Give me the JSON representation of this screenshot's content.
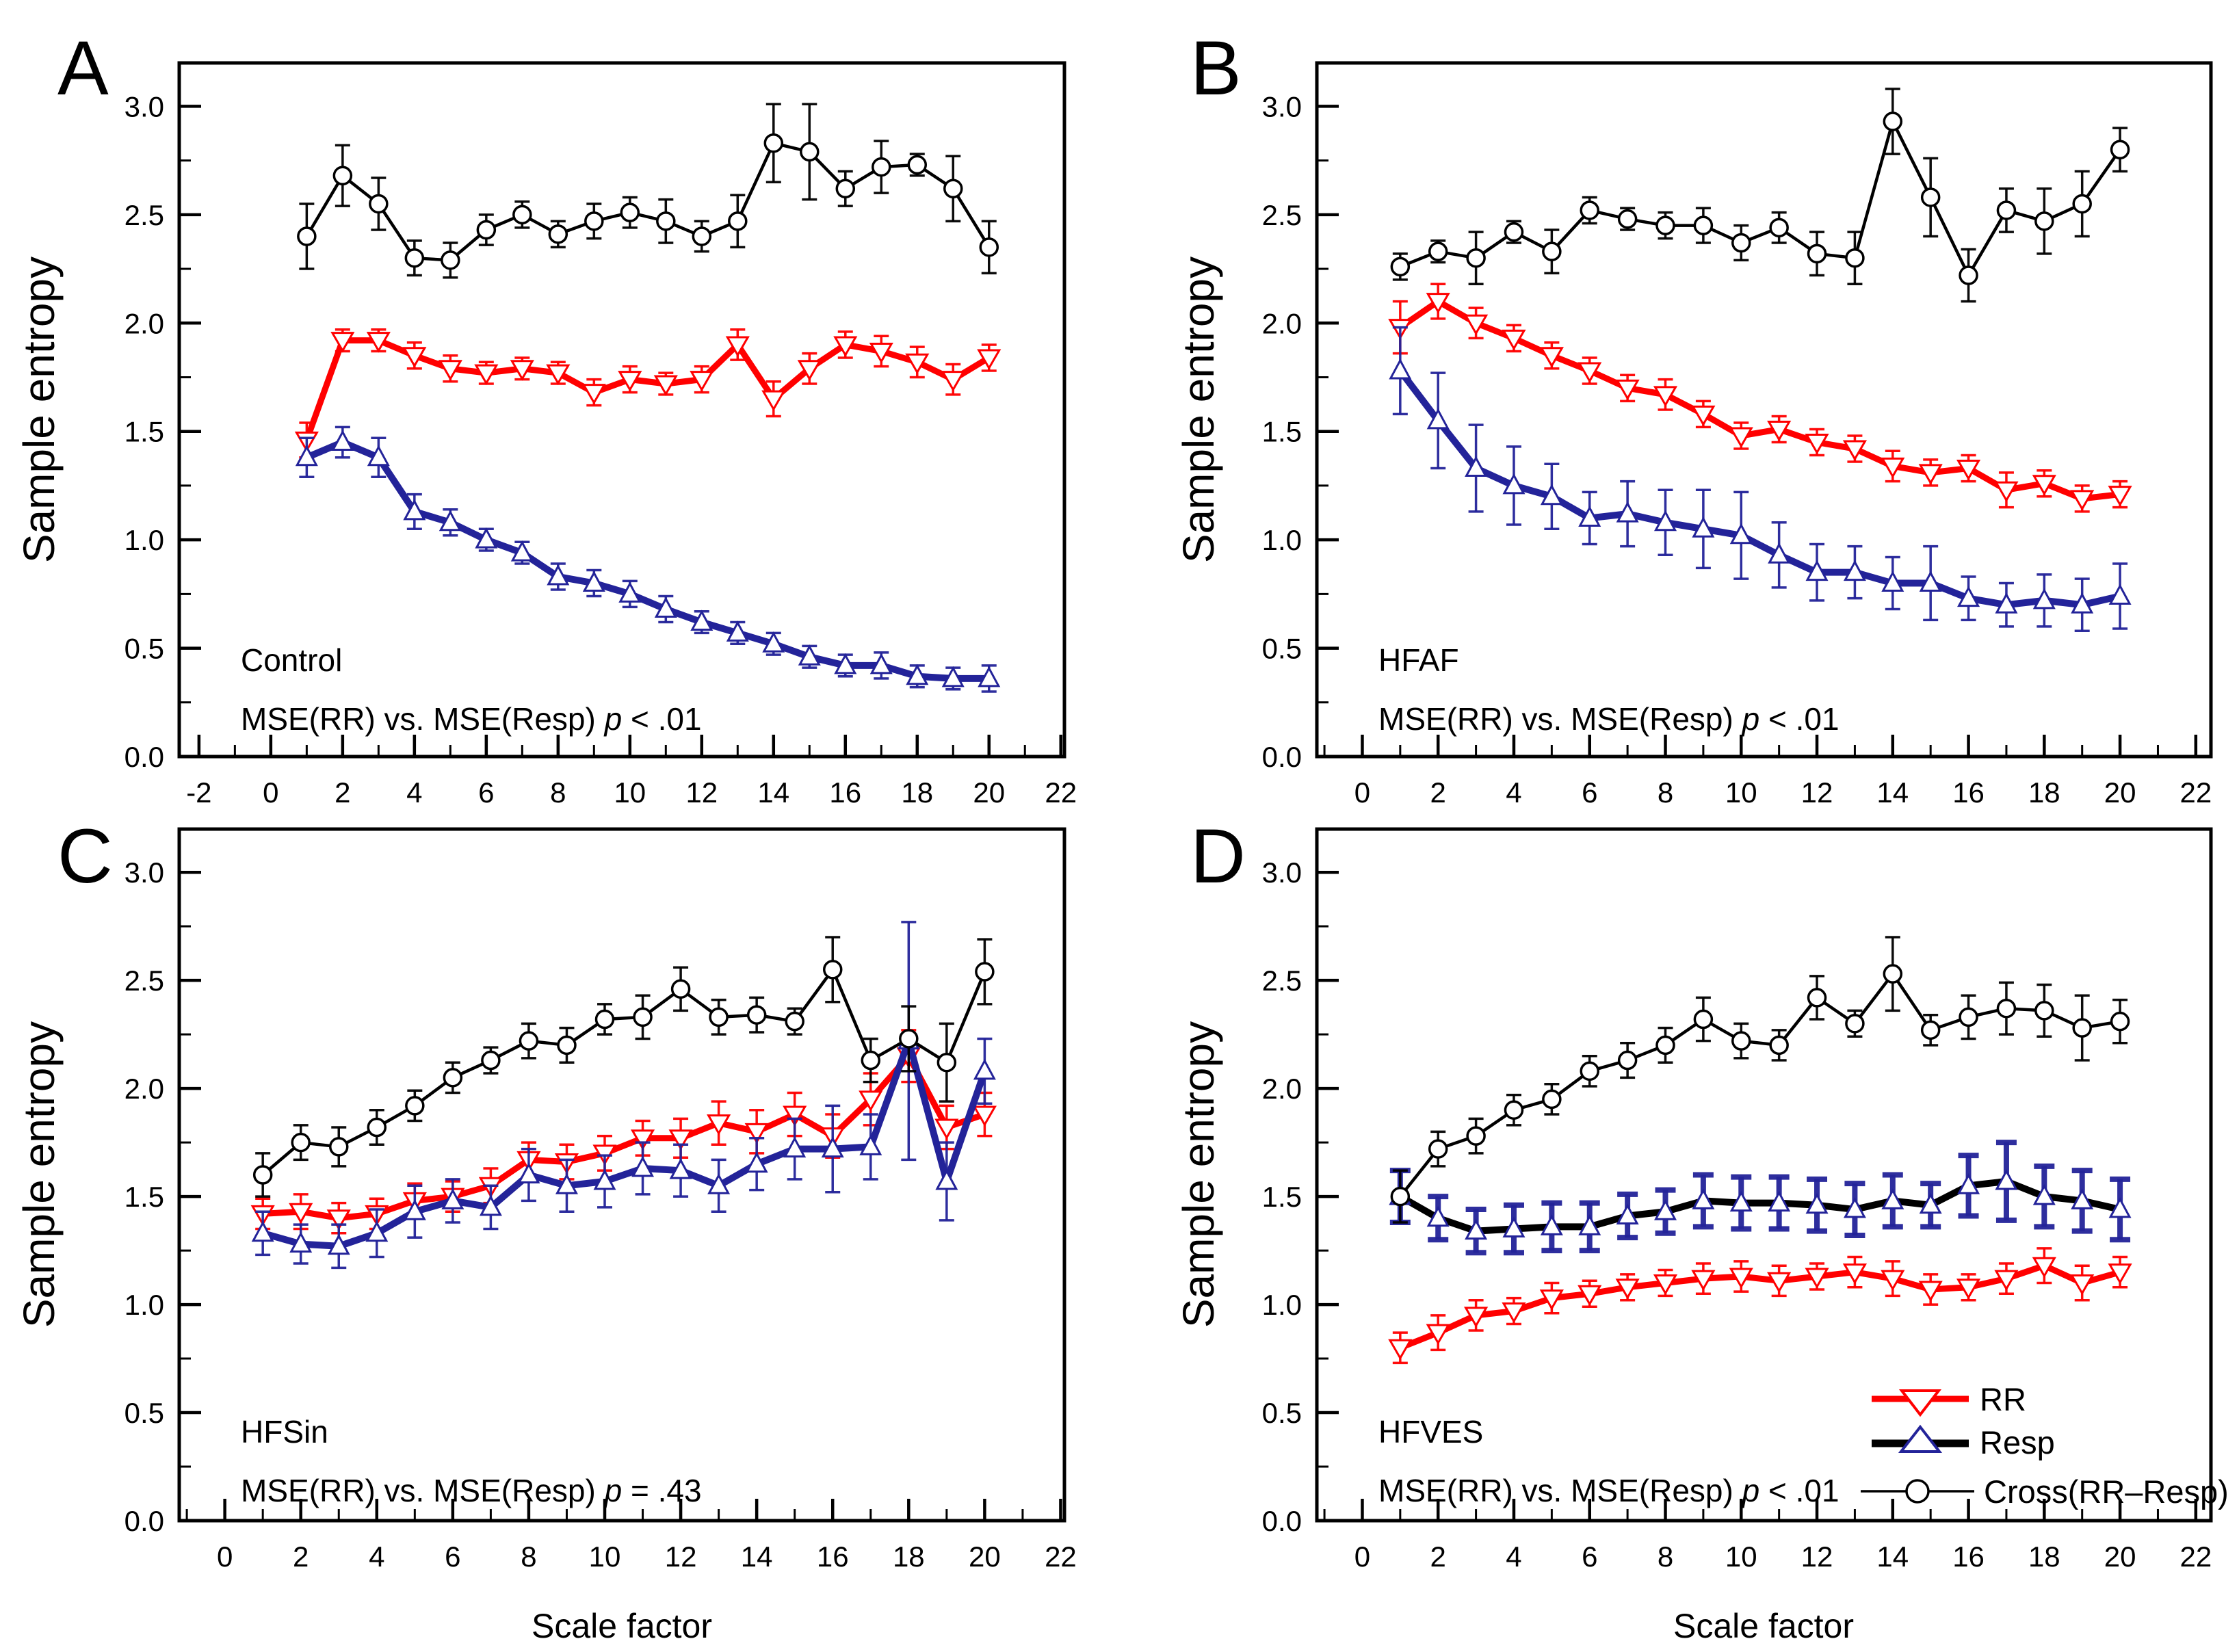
{
  "page": {
    "background": "#FFFFFF"
  },
  "colors": {
    "rr": "#FF0000",
    "resp": "#232399",
    "cross": "#000000"
  },
  "axis": {
    "y_label": "Sample entropy",
    "x_label": "Scale factor",
    "y_tick_labels": [
      "0.0",
      "0.5",
      "1.0",
      "1.5",
      "2.0",
      "2.5",
      "3.0"
    ],
    "y_tick_values": [
      0,
      0.5,
      1,
      1.5,
      2,
      2.5,
      3
    ],
    "y_minor_values": [
      0.25,
      0.75,
      1.25,
      1.75,
      2.25,
      2.75
    ],
    "ylim": [
      0,
      3.2
    ],
    "grid": "off"
  },
  "legend": {
    "location": "inside panel D, lower right",
    "items": [
      {
        "label": "RR",
        "series": "rr",
        "marker": "triangle-down"
      },
      {
        "label": "Resp",
        "series": "resp",
        "marker": "triangle-up"
      },
      {
        "label": "Cross(RR–Resp)",
        "series": "cross",
        "marker": "circle"
      }
    ]
  },
  "chart_data": [
    {
      "panel": "A",
      "type": "line",
      "title": "Control",
      "ylabel": "Sample entropy",
      "xlabel": "",
      "annotation": {
        "group": "Control",
        "sig_prefix": "MSE(RR) vs. MSE(Resp) ",
        "p": "p",
        "sig_tail": " < .01"
      },
      "x": [
        1,
        2,
        3,
        4,
        5,
        6,
        7,
        8,
        9,
        10,
        11,
        12,
        13,
        14,
        15,
        16,
        17,
        18,
        19,
        20
      ],
      "x_tick_labels": [
        "-2",
        "0",
        "2",
        "4",
        "6",
        "8",
        "10",
        "12",
        "14",
        "16",
        "18",
        "20",
        "22"
      ],
      "x_tick_values": [
        -2,
        0,
        2,
        4,
        6,
        8,
        10,
        12,
        14,
        16,
        18,
        20,
        22
      ],
      "x_minor_values": [
        -1,
        1,
        3,
        5,
        7,
        9,
        11,
        13,
        15,
        17,
        19,
        21
      ],
      "ylim": [
        0,
        3.2
      ],
      "series": [
        {
          "name": "RR",
          "color": "#FF0000",
          "line_color": "#FF0000",
          "marker": "triangle-down",
          "values": [
            1.46,
            1.92,
            1.92,
            1.85,
            1.79,
            1.77,
            1.79,
            1.77,
            1.68,
            1.74,
            1.72,
            1.74,
            1.9,
            1.65,
            1.79,
            1.9,
            1.87,
            1.82,
            1.74,
            1.84
          ],
          "errors": [
            0.08,
            0.05,
            0.05,
            0.06,
            0.06,
            0.05,
            0.05,
            0.05,
            0.06,
            0.06,
            0.05,
            0.06,
            0.07,
            0.08,
            0.07,
            0.06,
            0.07,
            0.07,
            0.07,
            0.06
          ]
        },
        {
          "name": "Resp",
          "color": "#232399",
          "line_color": "#232399",
          "marker": "triangle-up",
          "values": [
            1.38,
            1.45,
            1.38,
            1.13,
            1.08,
            1.0,
            0.94,
            0.83,
            0.8,
            0.75,
            0.68,
            0.62,
            0.57,
            0.52,
            0.46,
            0.42,
            0.42,
            0.37,
            0.36,
            0.36
          ],
          "errors": [
            0.09,
            0.07,
            0.09,
            0.08,
            0.06,
            0.05,
            0.05,
            0.06,
            0.06,
            0.06,
            0.06,
            0.05,
            0.05,
            0.05,
            0.05,
            0.05,
            0.06,
            0.05,
            0.05,
            0.06
          ]
        },
        {
          "name": "Cross(RR–Resp)",
          "color": "#000000",
          "line_color": "#000000",
          "marker": "circle",
          "values": [
            2.4,
            2.68,
            2.55,
            2.3,
            2.29,
            2.43,
            2.5,
            2.41,
            2.47,
            2.51,
            2.47,
            2.4,
            2.47,
            2.83,
            2.79,
            2.62,
            2.72,
            2.73,
            2.62,
            2.35
          ],
          "errors": [
            0.15,
            0.14,
            0.12,
            0.08,
            0.08,
            0.07,
            0.06,
            0.06,
            0.08,
            0.07,
            0.1,
            0.07,
            0.12,
            0.18,
            0.22,
            0.08,
            0.12,
            0.05,
            0.15,
            0.12
          ]
        }
      ]
    },
    {
      "panel": "B",
      "type": "line",
      "title": "HFAF",
      "ylabel": "Sample entropy",
      "xlabel": "",
      "annotation": {
        "group": "HFAF",
        "sig_prefix": "MSE(RR) vs. MSE(Resp) ",
        "p": "p",
        "sig_tail": " < .01"
      },
      "x": [
        1,
        2,
        3,
        4,
        5,
        6,
        7,
        8,
        9,
        10,
        11,
        12,
        13,
        14,
        15,
        16,
        17,
        18,
        19,
        20
      ],
      "x_tick_labels": [
        "0",
        "2",
        "4",
        "6",
        "8",
        "10",
        "12",
        "14",
        "16",
        "18",
        "20",
        "22"
      ],
      "x_tick_values": [
        0,
        2,
        4,
        6,
        8,
        10,
        12,
        14,
        16,
        18,
        20,
        22
      ],
      "x_minor_values": [
        -1,
        1,
        3,
        5,
        7,
        9,
        11,
        13,
        15,
        17,
        19,
        21
      ],
      "ylim": [
        0,
        3.2
      ],
      "series": [
        {
          "name": "RR",
          "color": "#FF0000",
          "line_color": "#FF0000",
          "marker": "triangle-down",
          "values": [
            1.98,
            2.1,
            2.0,
            1.93,
            1.85,
            1.78,
            1.7,
            1.67,
            1.58,
            1.48,
            1.51,
            1.45,
            1.42,
            1.34,
            1.31,
            1.33,
            1.23,
            1.26,
            1.19,
            1.21
          ],
          "errors": [
            0.12,
            0.08,
            0.07,
            0.06,
            0.06,
            0.06,
            0.06,
            0.07,
            0.06,
            0.06,
            0.06,
            0.06,
            0.06,
            0.07,
            0.06,
            0.06,
            0.08,
            0.06,
            0.06,
            0.06
          ]
        },
        {
          "name": "Resp",
          "color": "#232399",
          "line_color": "#232399",
          "marker": "triangle-up",
          "values": [
            1.78,
            1.55,
            1.33,
            1.25,
            1.2,
            1.1,
            1.12,
            1.08,
            1.05,
            1.02,
            0.93,
            0.85,
            0.85,
            0.8,
            0.8,
            0.73,
            0.7,
            0.72,
            0.7,
            0.74
          ],
          "errors": [
            0.2,
            0.22,
            0.2,
            0.18,
            0.15,
            0.12,
            0.15,
            0.15,
            0.18,
            0.2,
            0.15,
            0.13,
            0.12,
            0.12,
            0.17,
            0.1,
            0.1,
            0.12,
            0.12,
            0.15
          ]
        },
        {
          "name": "Cross(RR–Resp)",
          "color": "#000000",
          "line_color": "#000000",
          "marker": "circle",
          "values": [
            2.26,
            2.33,
            2.3,
            2.42,
            2.33,
            2.52,
            2.48,
            2.45,
            2.45,
            2.37,
            2.44,
            2.32,
            2.3,
            2.93,
            2.58,
            2.22,
            2.52,
            2.47,
            2.55,
            2.8
          ],
          "errors": [
            0.06,
            0.05,
            0.12,
            0.05,
            0.1,
            0.06,
            0.05,
            0.06,
            0.08,
            0.08,
            0.07,
            0.1,
            0.12,
            0.15,
            0.18,
            0.12,
            0.1,
            0.15,
            0.15,
            0.1
          ]
        }
      ]
    },
    {
      "panel": "C",
      "type": "line",
      "title": "HFSin",
      "ylabel": "Sample entropy",
      "xlabel": "Scale factor",
      "annotation": {
        "group": "HFSin",
        "sig_prefix": "MSE(RR) vs. MSE(Resp) ",
        "p": "p",
        "sig_tail": " = .43"
      },
      "x": [
        1,
        2,
        3,
        4,
        5,
        6,
        7,
        8,
        9,
        10,
        11,
        12,
        13,
        14,
        15,
        16,
        17,
        18,
        19,
        20
      ],
      "x_tick_labels": [
        "0",
        "2",
        "4",
        "6",
        "8",
        "10",
        "12",
        "14",
        "16",
        "18",
        "20",
        "22"
      ],
      "x_tick_values": [
        0,
        2,
        4,
        6,
        8,
        10,
        12,
        14,
        16,
        18,
        20,
        22
      ],
      "x_minor_values": [
        -1,
        1,
        3,
        5,
        7,
        9,
        11,
        13,
        15,
        17,
        19,
        21
      ],
      "ylim": [
        0,
        3.2
      ],
      "series": [
        {
          "name": "RR",
          "color": "#FF0000",
          "line_color": "#FF0000",
          "marker": "triangle-down",
          "values": [
            1.42,
            1.43,
            1.4,
            1.42,
            1.48,
            1.5,
            1.55,
            1.67,
            1.66,
            1.7,
            1.77,
            1.77,
            1.84,
            1.8,
            1.88,
            1.78,
            1.95,
            2.15,
            1.82,
            1.88
          ],
          "errors": [
            0.07,
            0.08,
            0.07,
            0.07,
            0.08,
            0.07,
            0.08,
            0.08,
            0.08,
            0.08,
            0.08,
            0.09,
            0.1,
            0.1,
            0.1,
            0.1,
            0.12,
            0.12,
            0.1,
            0.1
          ]
        },
        {
          "name": "Resp",
          "color": "#232399",
          "line_color": "#232399",
          "marker": "triangle-up",
          "values": [
            1.33,
            1.28,
            1.27,
            1.33,
            1.43,
            1.48,
            1.45,
            1.6,
            1.55,
            1.57,
            1.63,
            1.62,
            1.55,
            1.65,
            1.72,
            1.72,
            1.73,
            2.22,
            1.57,
            2.08
          ],
          "errors": [
            0.1,
            0.09,
            0.1,
            0.11,
            0.12,
            0.1,
            0.1,
            0.12,
            0.12,
            0.12,
            0.12,
            0.12,
            0.12,
            0.12,
            0.14,
            0.2,
            0.15,
            0.55,
            0.18,
            0.15
          ]
        },
        {
          "name": "Cross(RR–Resp)",
          "color": "#000000",
          "line_color": "#000000",
          "marker": "circle",
          "values": [
            1.6,
            1.75,
            1.73,
            1.82,
            1.92,
            2.05,
            2.13,
            2.22,
            2.2,
            2.32,
            2.33,
            2.46,
            2.33,
            2.34,
            2.31,
            2.55,
            2.13,
            2.23,
            2.12,
            2.54
          ],
          "errors": [
            0.1,
            0.08,
            0.09,
            0.08,
            0.07,
            0.07,
            0.06,
            0.08,
            0.08,
            0.07,
            0.1,
            0.1,
            0.08,
            0.08,
            0.06,
            0.15,
            0.1,
            0.15,
            0.18,
            0.15
          ]
        }
      ]
    },
    {
      "panel": "D",
      "type": "line",
      "title": "HFVES",
      "ylabel": "Sample entropy",
      "xlabel": "Scale factor",
      "annotation": {
        "group": "HFVES",
        "sig_prefix": "MSE(RR) vs. MSE(Resp) ",
        "p": "p",
        "sig_tail": " < .01"
      },
      "x": [
        1,
        2,
        3,
        4,
        5,
        6,
        7,
        8,
        9,
        10,
        11,
        12,
        13,
        14,
        15,
        16,
        17,
        18,
        19,
        20
      ],
      "x_tick_labels": [
        "0",
        "2",
        "4",
        "6",
        "8",
        "10",
        "12",
        "14",
        "16",
        "18",
        "20",
        "22"
      ],
      "x_tick_values": [
        0,
        2,
        4,
        6,
        8,
        10,
        12,
        14,
        16,
        18,
        20,
        22
      ],
      "x_minor_values": [
        -1,
        1,
        3,
        5,
        7,
        9,
        11,
        13,
        15,
        17,
        19,
        21
      ],
      "ylim": [
        0,
        3.2
      ],
      "series": [
        {
          "name": "RR",
          "color": "#FF0000",
          "line_color": "#FF0000",
          "marker": "triangle-down",
          "values": [
            0.8,
            0.87,
            0.95,
            0.97,
            1.03,
            1.05,
            1.08,
            1.1,
            1.12,
            1.13,
            1.11,
            1.13,
            1.15,
            1.12,
            1.07,
            1.08,
            1.12,
            1.18,
            1.1,
            1.15
          ],
          "errors": [
            0.07,
            0.08,
            0.07,
            0.06,
            0.07,
            0.06,
            0.06,
            0.06,
            0.07,
            0.07,
            0.07,
            0.06,
            0.07,
            0.08,
            0.07,
            0.06,
            0.07,
            0.08,
            0.08,
            0.07
          ]
        },
        {
          "name": "Resp",
          "color": "#232399",
          "line_color": "#000000",
          "marker": "triangle-up",
          "bold_err": true,
          "values": [
            1.5,
            1.4,
            1.34,
            1.35,
            1.36,
            1.36,
            1.41,
            1.43,
            1.48,
            1.47,
            1.47,
            1.46,
            1.44,
            1.48,
            1.46,
            1.55,
            1.57,
            1.5,
            1.48,
            1.44
          ],
          "errors": [
            0.12,
            0.1,
            0.1,
            0.11,
            0.11,
            0.11,
            0.1,
            0.1,
            0.12,
            0.12,
            0.12,
            0.12,
            0.12,
            0.12,
            0.1,
            0.14,
            0.18,
            0.14,
            0.14,
            0.14
          ]
        },
        {
          "name": "Cross(RR–Resp)",
          "color": "#000000",
          "line_color": "#000000",
          "marker": "circle",
          "values": [
            1.5,
            1.72,
            1.78,
            1.9,
            1.95,
            2.08,
            2.13,
            2.2,
            2.32,
            2.22,
            2.2,
            2.42,
            2.3,
            2.53,
            2.27,
            2.33,
            2.37,
            2.36,
            2.28,
            2.31
          ],
          "errors": [
            0.12,
            0.08,
            0.08,
            0.07,
            0.07,
            0.07,
            0.08,
            0.08,
            0.1,
            0.08,
            0.07,
            0.1,
            0.06,
            0.17,
            0.07,
            0.1,
            0.12,
            0.12,
            0.15,
            0.1
          ]
        }
      ]
    }
  ]
}
